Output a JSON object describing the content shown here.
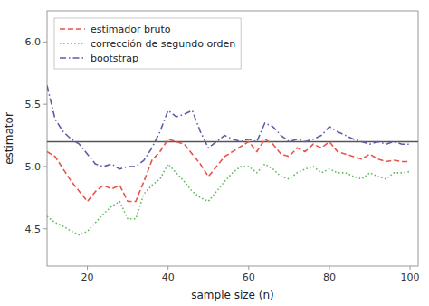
{
  "chart_data": {
    "type": "line",
    "xlabel": "sample size (n)",
    "ylabel": "estimator",
    "x": [
      10,
      12,
      14,
      16,
      18,
      20,
      22,
      24,
      26,
      28,
      30,
      32,
      34,
      36,
      38,
      40,
      42,
      44,
      46,
      48,
      50,
      52,
      54,
      56,
      58,
      60,
      62,
      64,
      66,
      68,
      70,
      72,
      74,
      76,
      78,
      80,
      82,
      84,
      86,
      88,
      90,
      92,
      94,
      96,
      98,
      100
    ],
    "series": [
      {
        "name": "estimador bruto",
        "color": "#e8534a",
        "line_style": "dashed",
        "values": [
          5.12,
          5.08,
          4.98,
          4.88,
          4.8,
          4.72,
          4.8,
          4.85,
          4.82,
          4.85,
          4.72,
          4.72,
          4.88,
          5.05,
          5.12,
          5.22,
          5.2,
          5.18,
          5.1,
          5.02,
          4.92,
          5.0,
          5.08,
          5.12,
          5.16,
          5.2,
          5.12,
          5.22,
          5.18,
          5.1,
          5.08,
          5.15,
          5.12,
          5.18,
          5.15,
          5.2,
          5.12,
          5.1,
          5.08,
          5.06,
          5.1,
          5.06,
          5.04,
          5.05,
          5.04,
          5.04
        ]
      },
      {
        "name": "corrección de segundo orden",
        "color": "#5cb85c",
        "line_style": "dotted",
        "values": [
          4.6,
          4.55,
          4.52,
          4.48,
          4.45,
          4.48,
          4.55,
          4.62,
          4.68,
          4.72,
          4.58,
          4.58,
          4.78,
          4.85,
          4.9,
          5.02,
          4.95,
          4.88,
          4.8,
          4.75,
          4.72,
          4.8,
          4.88,
          4.95,
          5.0,
          5.0,
          4.95,
          5.02,
          4.98,
          4.92,
          4.9,
          4.95,
          4.98,
          5.0,
          4.95,
          4.98,
          4.95,
          4.95,
          4.92,
          4.9,
          4.95,
          4.92,
          4.9,
          4.95,
          4.95,
          4.96
        ]
      },
      {
        "name": "bootstrap",
        "color": "#5b5ea6",
        "line_style": "dashdot",
        "values": [
          5.65,
          5.38,
          5.28,
          5.22,
          5.18,
          5.1,
          5.02,
          5.0,
          5.02,
          4.98,
          5.0,
          5.0,
          5.05,
          5.15,
          5.28,
          5.45,
          5.4,
          5.42,
          5.45,
          5.28,
          5.15,
          5.2,
          5.25,
          5.22,
          5.2,
          5.22,
          5.2,
          5.35,
          5.32,
          5.25,
          5.2,
          5.22,
          5.2,
          5.22,
          5.25,
          5.32,
          5.28,
          5.25,
          5.22,
          5.2,
          5.18,
          5.2,
          5.18,
          5.2,
          5.18,
          5.18
        ]
      }
    ],
    "hline": {
      "y": 5.2,
      "color": "#555555"
    },
    "xlim": [
      10,
      102
    ],
    "ylim": [
      4.2,
      6.25
    ],
    "xticks": [
      20,
      40,
      60,
      80,
      100
    ],
    "yticks": [
      4.5,
      {
        "value": 5.0,
        "label": "5.0"
      },
      5.5,
      {
        "value": 6.0,
        "label": "6.0"
      }
    ],
    "grid": false,
    "legend": "upper left"
  }
}
